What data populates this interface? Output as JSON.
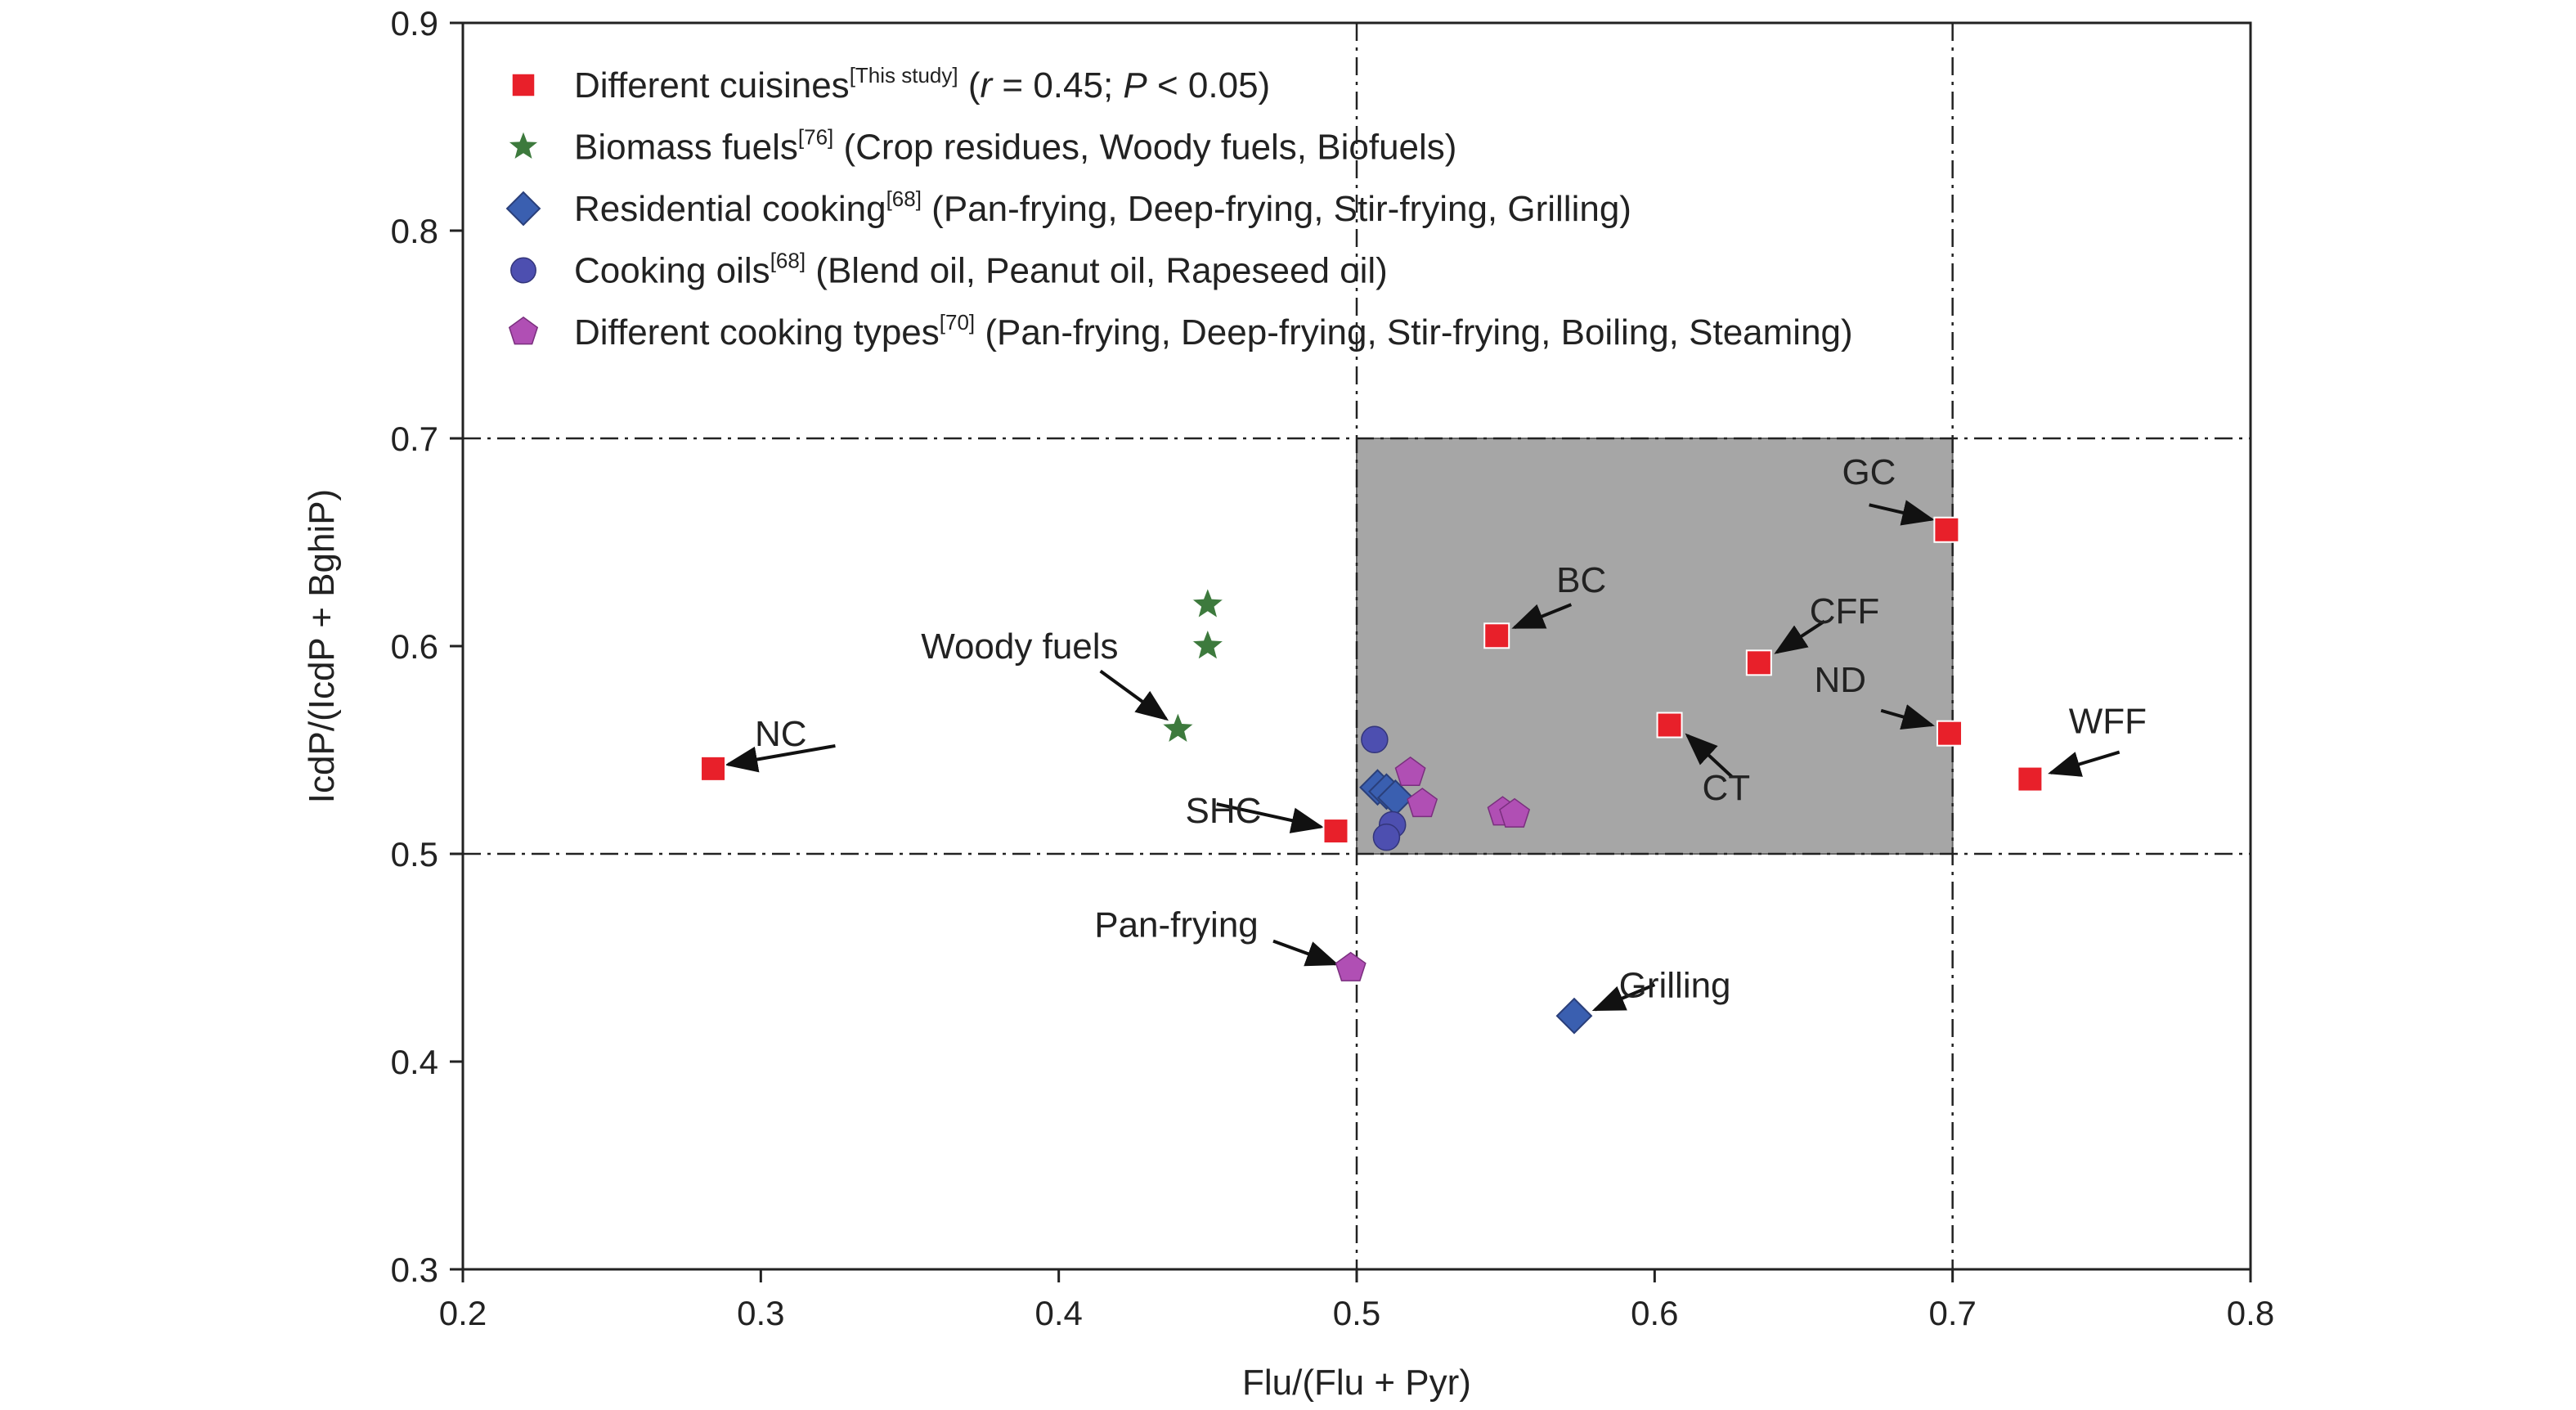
{
  "chart_data": {
    "type": "scatter",
    "xlabel": "Flu/(Flu + Pyr)",
    "ylabel": "IcdP/(IcdP + BghiP)",
    "xlim": [
      0.2,
      0.8
    ],
    "ylim": [
      0.3,
      0.9
    ],
    "xticks": [
      "0.2",
      "0.3",
      "0.4",
      "0.5",
      "0.6",
      "0.7",
      "0.8"
    ],
    "yticks": [
      "0.3",
      "0.4",
      "0.5",
      "0.6",
      "0.7",
      "0.8",
      "0.9"
    ],
    "grid": false,
    "legend_position": "top-left",
    "reference_lines": {
      "x": [
        0.5,
        0.7
      ],
      "y": [
        0.5,
        0.7
      ]
    },
    "shaded_region": {
      "x": [
        0.5,
        0.7
      ],
      "y": [
        0.5,
        0.7
      ],
      "color": "#a6a6a6"
    },
    "series": [
      {
        "name": "Different cuisines",
        "marker": "square",
        "color": "#e8202a",
        "legend": {
          "main": "Different cuisines",
          "sup": "[This study]",
          "r_label": "r",
          "stat": " = 0.45; ",
          "p_label": "P",
          "p_stat": " < 0.05)"
        },
        "points": [
          {
            "x": 0.284,
            "y": 0.541,
            "label": "NC"
          },
          {
            "x": 0.493,
            "y": 0.511,
            "label": "SHC"
          },
          {
            "x": 0.547,
            "y": 0.605,
            "label": "BC"
          },
          {
            "x": 0.605,
            "y": 0.562,
            "label": "CT"
          },
          {
            "x": 0.635,
            "y": 0.592,
            "label": "CFF"
          },
          {
            "x": 0.698,
            "y": 0.656,
            "label": "GC"
          },
          {
            "x": 0.699,
            "y": 0.558,
            "label": "ND"
          },
          {
            "x": 0.726,
            "y": 0.536,
            "label": "WFF"
          }
        ]
      },
      {
        "name": "Biomass fuels",
        "marker": "star",
        "color": "#3d7a3d",
        "legend": {
          "main": "Biomass fuels",
          "sup": "[76]",
          "rest": " (Crop residues, Woody fuels, Biofuels)"
        },
        "points": [
          {
            "x": 0.45,
            "y": 0.62
          },
          {
            "x": 0.45,
            "y": 0.6
          },
          {
            "x": 0.44,
            "y": 0.56,
            "label": "Woody fuels"
          }
        ]
      },
      {
        "name": "Residential cooking",
        "marker": "diamond",
        "color": "#3a5fb0",
        "legend": {
          "main": "Residential cooking",
          "sup": "[68]",
          "rest": " (Pan-frying, Deep-frying, Stir-frying, Grilling)"
        },
        "points": [
          {
            "x": 0.507,
            "y": 0.532
          },
          {
            "x": 0.51,
            "y": 0.53
          },
          {
            "x": 0.513,
            "y": 0.527
          },
          {
            "x": 0.573,
            "y": 0.422,
            "label": "Grilling"
          }
        ]
      },
      {
        "name": "Cooking oils",
        "marker": "circle",
        "color": "#4d4fb0",
        "legend": {
          "main": "Cooking oils",
          "sup": "[68]",
          "rest": " (Blend oil, Peanut oil, Rapeseed oil)"
        },
        "points": [
          {
            "x": 0.506,
            "y": 0.555
          },
          {
            "x": 0.512,
            "y": 0.514
          },
          {
            "x": 0.51,
            "y": 0.508
          }
        ]
      },
      {
        "name": "Different cooking types",
        "marker": "pentagon",
        "color": "#b04fb4",
        "legend": {
          "main": "Different cooking types",
          "sup": "[70]",
          "rest": " (Pan-frying, Deep-frying, Stir-frying, Boiling, Steaming)"
        },
        "points": [
          {
            "x": 0.518,
            "y": 0.539
          },
          {
            "x": 0.522,
            "y": 0.524
          },
          {
            "x": 0.549,
            "y": 0.52
          },
          {
            "x": 0.553,
            "y": 0.519
          },
          {
            "x": 0.498,
            "y": 0.445,
            "label": "Pan-frying"
          }
        ]
      }
    ],
    "annotations": [
      {
        "text": "NC",
        "tx": 0.298,
        "ty": 0.552,
        "hx": 0.289,
        "hy": 0.543,
        "ax": 0.325,
        "ay": 0.552,
        "anchor": "start"
      },
      {
        "text": "SHC",
        "tx": 0.468,
        "ty": 0.515,
        "hx": 0.488,
        "hy": 0.513,
        "ax": 0.453,
        "ay": 0.524,
        "anchor": "end"
      },
      {
        "text": "BC",
        "tx": 0.567,
        "ty": 0.626,
        "hx": 0.553,
        "hy": 0.609,
        "ax": 0.572,
        "ay": 0.62,
        "anchor": "start"
      },
      {
        "text": "CT",
        "tx": 0.624,
        "ty": 0.526,
        "hx": 0.611,
        "hy": 0.557,
        "ax": 0.626,
        "ay": 0.537,
        "anchor": "middle"
      },
      {
        "text": "CFF",
        "tx": 0.652,
        "ty": 0.611,
        "hx": 0.641,
        "hy": 0.597,
        "ax": 0.657,
        "ay": 0.612,
        "anchor": "start"
      },
      {
        "text": "GC",
        "tx": 0.681,
        "ty": 0.678,
        "hx": 0.693,
        "hy": 0.661,
        "ax": 0.672,
        "ay": 0.668,
        "anchor": "end"
      },
      {
        "text": "ND",
        "tx": 0.671,
        "ty": 0.578,
        "hx": 0.693,
        "hy": 0.562,
        "ax": 0.676,
        "ay": 0.569,
        "anchor": "end"
      },
      {
        "text": "WFF",
        "tx": 0.739,
        "ty": 0.558,
        "hx": 0.733,
        "hy": 0.539,
        "ax": 0.756,
        "ay": 0.549,
        "anchor": "start"
      },
      {
        "text": "Woody fuels",
        "tx": 0.42,
        "ty": 0.594,
        "hx": 0.436,
        "hy": 0.565,
        "ax": 0.414,
        "ay": 0.588,
        "anchor": "end"
      },
      {
        "text": "Pan-frying",
        "tx": 0.467,
        "ty": 0.46,
        "hx": 0.493,
        "hy": 0.447,
        "ax": 0.472,
        "ay": 0.458,
        "anchor": "end"
      },
      {
        "text": "Grilling",
        "tx": 0.588,
        "ty": 0.431,
        "hx": 0.58,
        "hy": 0.425,
        "ax": 0.6,
        "ay": 0.437,
        "anchor": "start"
      }
    ]
  }
}
